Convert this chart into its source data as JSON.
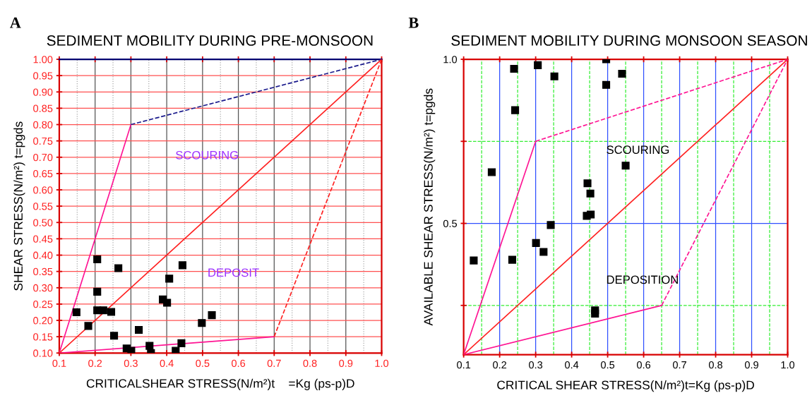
{
  "chart_data": [
    {
      "type": "scatter",
      "title": "SEDIMENT MOBILITY DURING PRE-MONSOON",
      "xlabel": "CRITICALSHEAR STRESS(N/m²)t    =Kg (ps-p)D",
      "ylabel": "SHEAR STRESS(N/m²) t=pgds",
      "annotations": [
        "A",
        "SCOURING",
        "DEPOSIT"
      ],
      "xlim": [
        0.1,
        1.0
      ],
      "ylim": [
        0.1,
        1.0
      ],
      "xticks": [
        0.1,
        0.2,
        0.3,
        0.4,
        0.5,
        0.6,
        0.7,
        0.8,
        0.9,
        {
          "value": 1.0,
          "label": "1.0"
        }
      ],
      "yticks": [
        {
          "value": 0.1,
          "label": "0.10"
        },
        0.15,
        {
          "value": 0.2,
          "label": "0.20"
        },
        0.25,
        {
          "value": 0.3,
          "label": "0.30"
        },
        0.35,
        {
          "value": 0.4,
          "label": "0.40"
        },
        0.45,
        {
          "value": 0.5,
          "label": "0.50"
        },
        0.55,
        {
          "value": 0.6,
          "label": "0.60"
        },
        0.65,
        {
          "value": 0.7,
          "label": "0.70"
        },
        0.75,
        {
          "value": 0.8,
          "label": "0.80"
        },
        0.85,
        {
          "value": 0.9,
          "label": "0.90"
        },
        0.95,
        {
          "value": 1.0,
          "label": "1.00"
        }
      ],
      "grid": true,
      "legend": false,
      "series": [
        {
          "marker": "square",
          "color": "#000000",
          "x": [
            0.148,
            0.181,
            0.206,
            0.206,
            0.206,
            0.223,
            0.245,
            0.265,
            0.253,
            0.288,
            0.301,
            0.322,
            0.352,
            0.356,
            0.389,
            0.401,
            0.407,
            0.425,
            0.441,
            0.444,
            0.498,
            0.526
          ],
          "values": [
            0.225,
            0.183,
            0.387,
            0.288,
            0.231,
            0.231,
            0.226,
            0.36,
            0.153,
            0.114,
            0.107,
            0.171,
            0.122,
            0.1,
            0.264,
            0.254,
            0.328,
            0.107,
            0.13,
            0.369,
            0.192,
            0.216
          ]
        },
        {
          "type": "line",
          "color": "#ff1493",
          "line_style": "solid",
          "x": [
            0.1,
            0.3
          ],
          "values": [
            0.1,
            0.8
          ]
        },
        {
          "type": "line",
          "color": "#1a1a8c",
          "line_style": "dashed",
          "x": [
            0.3,
            1.0
          ],
          "values": [
            0.8,
            1.0
          ]
        },
        {
          "type": "line",
          "color": "#ff2020",
          "line_style": "solid",
          "x": [
            0.1,
            1.0
          ],
          "values": [
            0.1,
            1.0
          ]
        },
        {
          "type": "line",
          "color": "#ff1493",
          "line_style": "solid",
          "x": [
            0.1,
            0.7
          ],
          "values": [
            0.1,
            0.15
          ]
        },
        {
          "type": "line",
          "color": "#ff2020",
          "line_style": "dashed",
          "x": [
            0.7,
            1.0
          ],
          "values": [
            0.15,
            1.0
          ]
        }
      ]
    },
    {
      "type": "scatter",
      "title": "SEDIMENT MOBILITY DURING MONSOON SEASON",
      "xlabel": "CRITICAL SHEAR STRESS(N/m²)t=Kg (ps-p)D",
      "ylabel": "AVAILABLE SHEAR STRESS(N/m²) t=pgds",
      "annotations": [
        "B",
        "SCOURING",
        "DEPOSITION"
      ],
      "xlim": [
        0.1,
        1.0
      ],
      "ylim": [
        0.1,
        1.0
      ],
      "xticks": [
        0.1,
        0.2,
        0.3,
        0.4,
        0.5,
        0.6,
        0.7,
        0.8,
        0.9,
        {
          "value": 1.0,
          "label": "1.0"
        }
      ],
      "yticks": [
        {
          "value": 0.25,
          "label": null
        },
        0.5,
        {
          "value": 0.75,
          "label": null
        },
        {
          "value": 1.0,
          "label": "1.0"
        }
      ],
      "grid": true,
      "legend": false,
      "series": [
        {
          "marker": "square",
          "color": "#000000",
          "x": [
            0.128,
            0.178,
            0.24,
            0.243,
            0.235,
            0.306,
            0.352,
            0.301,
            0.322,
            0.342,
            0.444,
            0.452,
            0.442,
            0.453,
            0.465,
            0.465,
            0.496,
            0.496,
            0.54,
            0.55
          ],
          "values": [
            0.387,
            0.656,
            0.971,
            0.845,
            0.389,
            0.982,
            0.948,
            0.44,
            0.413,
            0.495,
            0.622,
            0.591,
            0.523,
            0.527,
            0.235,
            0.225,
            1.0,
            0.922,
            0.956,
            0.676
          ]
        },
        {
          "type": "line",
          "color": "#ff1493",
          "line_style": "solid",
          "x": [
            0.1,
            0.3
          ],
          "values": [
            0.1,
            0.75
          ]
        },
        {
          "type": "line",
          "color": "#ff1493",
          "line_style": "dashed",
          "x": [
            0.3,
            1.0
          ],
          "values": [
            0.75,
            1.0
          ]
        },
        {
          "type": "line",
          "color": "#ff2020",
          "line_style": "solid",
          "x": [
            0.1,
            1.0
          ],
          "values": [
            0.1,
            1.0
          ]
        },
        {
          "type": "line",
          "color": "#ff1493",
          "line_style": "solid",
          "x": [
            0.1,
            0.65
          ],
          "values": [
            0.1,
            0.25
          ]
        },
        {
          "type": "line",
          "color": "#ff1493",
          "line_style": "dashed",
          "x": [
            0.65,
            1.0
          ],
          "values": [
            0.25,
            1.0
          ]
        }
      ]
    }
  ]
}
